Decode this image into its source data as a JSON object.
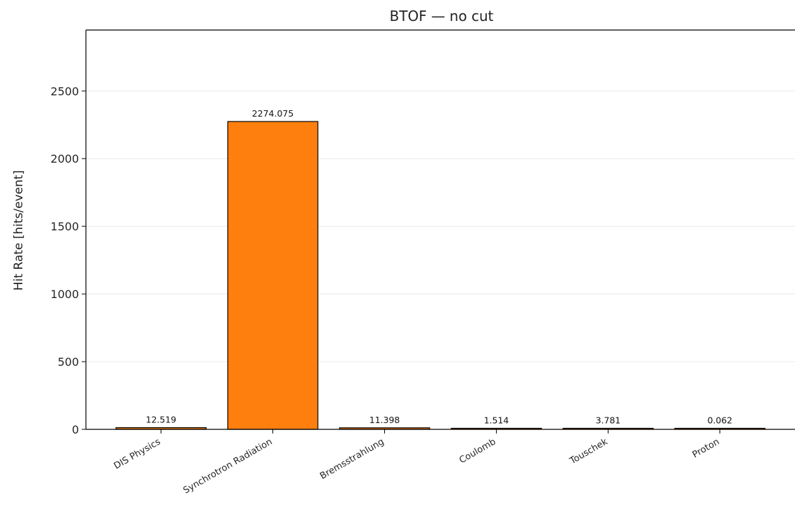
{
  "chart_data": {
    "type": "bar",
    "title": "BTOF — no cut",
    "xlabel": "",
    "ylabel": "Hit Rate [hits/event]",
    "categories": [
      "DIS Physics",
      "Synchrotron Radiation",
      "Bremsstrahlung",
      "Coulomb",
      "Touschek",
      "Proton"
    ],
    "values": [
      12.519,
      2274.075,
      11.398,
      1.514,
      3.781,
      0.062
    ],
    "data_labels": [
      "12.519",
      "2274.075",
      "11.398",
      "1.514",
      "3.781",
      "0.062"
    ],
    "ylim": [
      0,
      2950
    ],
    "yticks": [
      0,
      500,
      1000,
      1500,
      2000,
      2500
    ],
    "grid": "horizontal",
    "legend": "none",
    "colors": {
      "bar": "#ff7f0e",
      "edge": "#000000",
      "grid": "#e8e8e8"
    }
  }
}
